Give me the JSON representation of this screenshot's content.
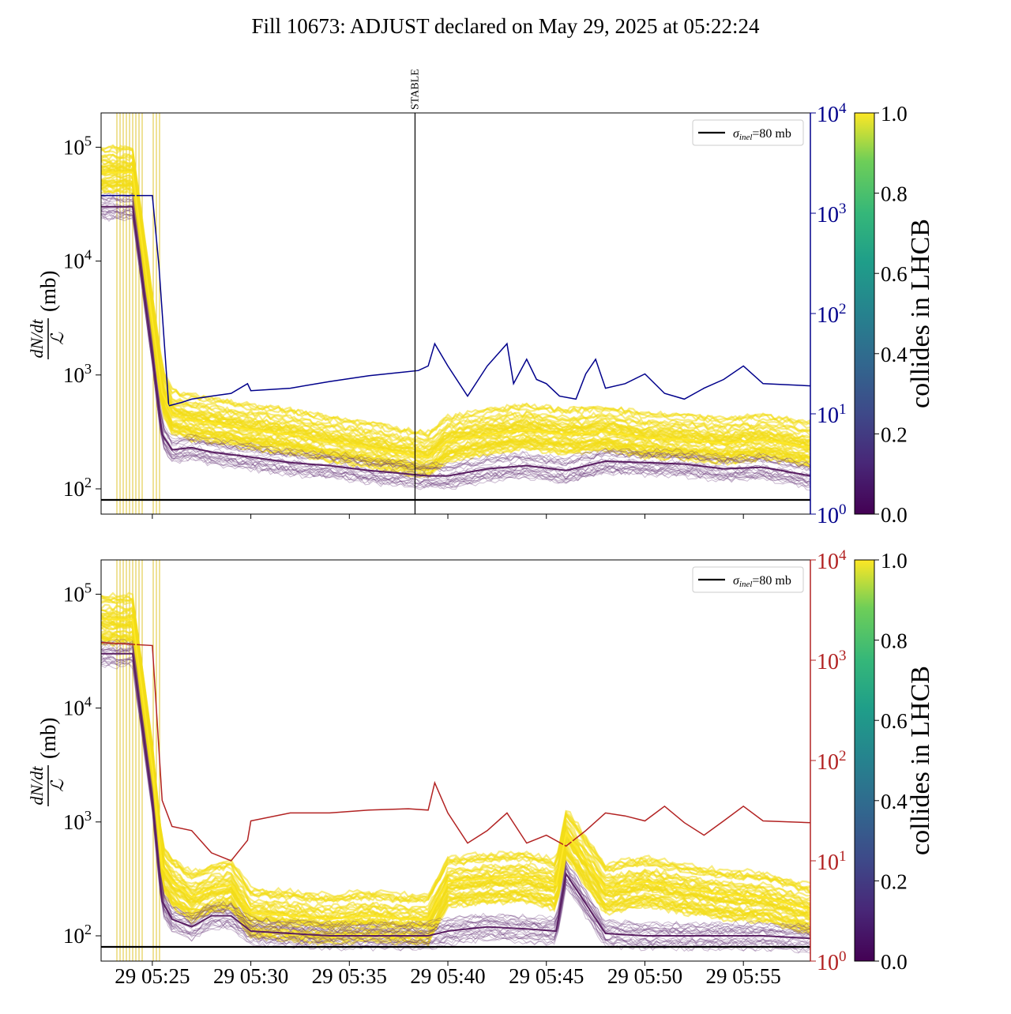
{
  "title": "Fill 10673: ADJUST declared on May 29, 2025 at 05:22:24",
  "chart_data": [
    {
      "type": "line",
      "panel": "top",
      "ylabel": "dN/dt / ℒ (mb)",
      "y_scale": "log",
      "ylim": [
        60,
        200000
      ],
      "y_ticks": [
        100,
        1000,
        10000,
        100000
      ],
      "y_tick_labels": [
        "10^2",
        "10^3",
        "10^4",
        "10^5"
      ],
      "x_tick_labels": [],
      "y2_scale": "log",
      "y2lim": [
        1,
        10000
      ],
      "y2_ticks": [
        1,
        10,
        100,
        1000,
        10000
      ],
      "y2_tick_labels": [
        "10^0",
        "10^1",
        "10^2",
        "10^3",
        "10^4"
      ],
      "y2_color": "#00008b",
      "vline": {
        "x": "05:38:20",
        "label": "STABLE"
      },
      "hline": {
        "y": 80,
        "color": "#000000"
      },
      "legend": {
        "position": "top-right",
        "entries": [
          {
            "label": "σinel=80 mb",
            "color": "#000000"
          }
        ]
      },
      "colorbar": {
        "label": "collides in LHCB",
        "range": [
          0.0,
          1.0
        ],
        "ticks": [
          "0.0",
          "0.2",
          "0.4",
          "0.6",
          "0.8",
          "1.0"
        ]
      },
      "series": [
        {
          "axis": "right",
          "color": "#00008b",
          "x": [
            "05:22:24",
            "05:25:00",
            "05:25:20",
            "05:25:50",
            "05:26:30",
            "05:27:00",
            "05:28:00",
            "05:29:00",
            "05:29:50",
            "05:30:00",
            "05:32:00",
            "05:34:00",
            "05:36:00",
            "05:38:30",
            "05:39:00",
            "05:39:20",
            "05:40:00",
            "05:41:00",
            "05:42:00",
            "05:43:00",
            "05:43:20",
            "05:44:00",
            "05:44:30",
            "05:45:00",
            "05:45:40",
            "05:46:30",
            "05:47:00",
            "05:47:30",
            "05:48:00",
            "05:49:00",
            "05:50:00",
            "05:51:00",
            "05:52:00",
            "05:53:00",
            "05:54:00",
            "05:55:00",
            "05:56:00",
            "05:58:24"
          ],
          "values": [
            1500,
            1500,
            300,
            12,
            13,
            14,
            15,
            16,
            20,
            17,
            18,
            21,
            24,
            27,
            30,
            50,
            30,
            15,
            30,
            50,
            20,
            35,
            22,
            20,
            15,
            14,
            25,
            35,
            18,
            20,
            25,
            16,
            14,
            18,
            22,
            30,
            20,
            19
          ]
        },
        {
          "axis": "left",
          "name": "collides median",
          "color": "#fde725",
          "x": [
            "05:22:24",
            "05:24:00",
            "05:25:00",
            "05:25:30",
            "05:26:00",
            "05:27:00",
            "05:28:00",
            "05:30:00",
            "05:32:00",
            "05:34:00",
            "05:36:00",
            "05:38:00",
            "05:39:00",
            "05:40:00",
            "05:42:00",
            "05:44:00",
            "05:46:00",
            "05:48:00",
            "05:50:00",
            "05:52:00",
            "05:54:00",
            "05:56:00",
            "05:58:24"
          ],
          "values": [
            60000,
            60000,
            3000,
            700,
            450,
            400,
            380,
            330,
            300,
            260,
            230,
            200,
            190,
            260,
            300,
            330,
            300,
            320,
            280,
            270,
            250,
            270,
            230
          ]
        },
        {
          "axis": "left",
          "name": "non-colliding median",
          "color": "#5a1f63",
          "x": [
            "05:22:24",
            "05:24:00",
            "05:25:00",
            "05:25:30",
            "05:26:00",
            "05:27:00",
            "05:28:00",
            "05:30:00",
            "05:32:00",
            "05:34:00",
            "05:36:00",
            "05:38:00",
            "05:39:00",
            "05:40:00",
            "05:42:00",
            "05:44:00",
            "05:46:00",
            "05:48:00",
            "05:50:00",
            "05:52:00",
            "05:54:00",
            "05:56:00",
            "05:58:24"
          ],
          "values": [
            30000,
            30000,
            1500,
            300,
            220,
            230,
            210,
            190,
            170,
            160,
            145,
            135,
            130,
            130,
            150,
            160,
            145,
            175,
            170,
            165,
            150,
            155,
            130
          ]
        }
      ]
    },
    {
      "type": "line",
      "panel": "bottom",
      "ylabel": "dN/dt / ℒ (mb)",
      "y_scale": "log",
      "ylim": [
        60,
        200000
      ],
      "y_ticks": [
        100,
        1000,
        10000,
        100000
      ],
      "y_tick_labels": [
        "10^2",
        "10^3",
        "10^4",
        "10^5"
      ],
      "x_ticks": [
        "05:25:00",
        "05:30:00",
        "05:35:00",
        "05:40:00",
        "05:45:00",
        "05:50:00",
        "05:55:00"
      ],
      "x_tick_labels": [
        "29 05:25",
        "29 05:30",
        "29 05:35",
        "29 05:40",
        "29 05:45",
        "29 05:50",
        "29 05:55"
      ],
      "y2_scale": "log",
      "y2lim": [
        1,
        10000
      ],
      "y2_ticks": [
        1,
        10,
        100,
        1000,
        10000
      ],
      "y2_tick_labels": [
        "10^0",
        "10^1",
        "10^2",
        "10^3",
        "10^4"
      ],
      "y2_color": "#b22222",
      "hline": {
        "y": 80,
        "color": "#000000"
      },
      "legend": {
        "position": "top-right",
        "entries": [
          {
            "label": "σinel=80 mb",
            "color": "#000000"
          }
        ]
      },
      "colorbar": {
        "label": "collides in LHCB",
        "range": [
          0.0,
          1.0
        ],
        "ticks": [
          "0.0",
          "0.2",
          "0.4",
          "0.6",
          "0.8",
          "1.0"
        ]
      },
      "series": [
        {
          "axis": "right",
          "color": "#b22222",
          "x": [
            "05:22:24",
            "05:25:00",
            "05:25:30",
            "05:26:00",
            "05:27:00",
            "05:28:00",
            "05:29:00",
            "05:29:50",
            "05:30:00",
            "05:32:00",
            "05:34:00",
            "05:36:00",
            "05:38:00",
            "05:39:00",
            "05:39:20",
            "05:40:00",
            "05:41:00",
            "05:42:00",
            "05:43:00",
            "05:44:00",
            "05:45:00",
            "05:46:00",
            "05:47:00",
            "05:48:00",
            "05:49:00",
            "05:50:00",
            "05:51:00",
            "05:52:00",
            "05:53:00",
            "05:54:00",
            "05:55:00",
            "05:56:00",
            "05:58:24"
          ],
          "values": [
            1500,
            1400,
            40,
            22,
            20,
            12,
            10,
            16,
            25,
            30,
            30,
            32,
            33,
            32,
            60,
            30,
            15,
            20,
            30,
            15,
            18,
            14,
            20,
            30,
            28,
            25,
            35,
            24,
            18,
            25,
            35,
            25,
            24
          ]
        },
        {
          "axis": "left",
          "name": "collides median",
          "color": "#fde725",
          "x": [
            "05:22:24",
            "05:24:00",
            "05:25:00",
            "05:25:30",
            "05:26:00",
            "05:27:00",
            "05:28:00",
            "05:29:00",
            "05:30:00",
            "05:32:00",
            "05:34:00",
            "05:36:00",
            "05:38:00",
            "05:39:00",
            "05:40:00",
            "05:42:00",
            "05:44:00",
            "05:45:30",
            "05:46:00",
            "05:48:00",
            "05:50:00",
            "05:52:00",
            "05:54:00",
            "05:56:00",
            "05:58:24"
          ],
          "values": [
            60000,
            60000,
            3000,
            400,
            300,
            220,
            260,
            280,
            160,
            150,
            140,
            150,
            140,
            140,
            300,
            320,
            330,
            280,
            800,
            260,
            300,
            260,
            230,
            220,
            170
          ]
        },
        {
          "axis": "left",
          "name": "non-colliding median",
          "color": "#5a1f63",
          "x": [
            "05:22:24",
            "05:24:00",
            "05:25:00",
            "05:25:30",
            "05:26:00",
            "05:27:00",
            "05:28:00",
            "05:29:00",
            "05:30:00",
            "05:32:00",
            "05:34:00",
            "05:36:00",
            "05:38:00",
            "05:39:00",
            "05:40:00",
            "05:42:00",
            "05:44:00",
            "05:45:30",
            "05:46:00",
            "05:48:00",
            "05:50:00",
            "05:52:00",
            "05:54:00",
            "05:56:00",
            "05:58:24"
          ],
          "values": [
            30000,
            30000,
            1500,
            200,
            140,
            120,
            150,
            150,
            110,
            105,
            100,
            100,
            100,
            100,
            110,
            120,
            115,
            110,
            350,
            105,
            100,
            100,
            100,
            100,
            95
          ]
        }
      ]
    }
  ]
}
